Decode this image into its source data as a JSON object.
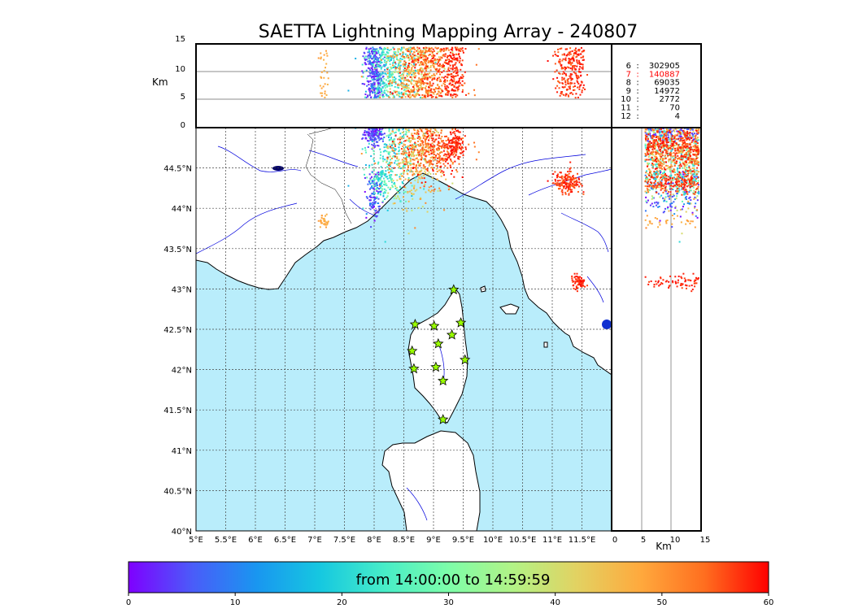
{
  "title": "SAETTA Lightning Mapping Array - 240807",
  "altitude_panel": {
    "ylabel": "Km",
    "yticks": [
      "15",
      "10",
      "5",
      "0"
    ]
  },
  "side_panel": {
    "xlabel": "Km",
    "xticks": [
      "0",
      "5",
      "10",
      "15"
    ]
  },
  "map": {
    "lon_ticks": [
      "5°E",
      "5.5°E",
      "6°E",
      "6.5°E",
      "7°E",
      "7.5°E",
      "8°E",
      "8.5°E",
      "9°E",
      "9.5°E",
      "10°E",
      "10.5°E",
      "11°E",
      "11.5°E"
    ],
    "lat_ticks": [
      "44.5°N",
      "44°N",
      "43.5°N",
      "43°N",
      "42.5°N",
      "42°N",
      "41.5°N",
      "41°N",
      "40.5°N",
      "40°N"
    ],
    "sea_color": "#b9edfb",
    "land_color": "#ffffff",
    "river_color": "#0000dd"
  },
  "stations_table": [
    {
      "id": "6",
      "count": "302905",
      "highlight": false
    },
    {
      "id": "7",
      "count": "140887",
      "highlight": true
    },
    {
      "id": "8",
      "count": "69035",
      "highlight": false
    },
    {
      "id": "9",
      "count": "14972",
      "highlight": false
    },
    {
      "id": "10",
      "count": "2772",
      "highlight": false
    },
    {
      "id": "11",
      "count": "70",
      "highlight": false
    },
    {
      "id": "12",
      "count": "4",
      "highlight": false
    }
  ],
  "colorbar": {
    "caption": "from 14:00:00 to 14:59:59",
    "ticks": [
      "0",
      "10",
      "20",
      "30",
      "40",
      "50",
      "60"
    ],
    "colors": [
      "#7f00ff",
      "#4a5cf9",
      "#1996f0",
      "#16c8e0",
      "#47edc8",
      "#7dfda9",
      "#b2f386",
      "#e2d262",
      "#ffa93d",
      "#ff6e1f",
      "#ff0000"
    ]
  },
  "station_markers": [
    {
      "lon": 9.34,
      "lat": 42.99
    },
    {
      "lon": 8.69,
      "lat": 42.56
    },
    {
      "lon": 9.01,
      "lat": 42.54
    },
    {
      "lon": 9.46,
      "lat": 42.58
    },
    {
      "lon": 9.08,
      "lat": 42.32
    },
    {
      "lon": 9.31,
      "lat": 42.43
    },
    {
      "lon": 8.64,
      "lat": 42.23
    },
    {
      "lon": 9.53,
      "lat": 42.12
    },
    {
      "lon": 8.67,
      "lat": 42.01
    },
    {
      "lon": 9.04,
      "lat": 42.03
    },
    {
      "lon": 9.16,
      "lat": 41.86
    },
    {
      "lon": 9.16,
      "lat": 41.38
    }
  ],
  "lightning_clusters": [
    {
      "lon": 7.98,
      "lat": 44.93,
      "spread_lon": 0.09,
      "spread_lat": 0.07,
      "count": 160,
      "c0": 0,
      "c1": 8
    },
    {
      "lon": 8.3,
      "lat": 44.72,
      "spread_lon": 0.22,
      "spread_lat": 0.28,
      "count": 260,
      "c0": 14,
      "c1": 30
    },
    {
      "lon": 8.68,
      "lat": 44.64,
      "spread_lon": 0.24,
      "spread_lat": 0.3,
      "count": 340,
      "c0": 38,
      "c1": 52
    },
    {
      "lon": 8.95,
      "lat": 44.76,
      "spread_lon": 0.28,
      "spread_lat": 0.2,
      "count": 420,
      "c0": 50,
      "c1": 60
    },
    {
      "lon": 9.35,
      "lat": 44.8,
      "spread_lon": 0.08,
      "spread_lat": 0.12,
      "count": 120,
      "c0": 56,
      "c1": 60
    },
    {
      "lon": 7.98,
      "lat": 44.17,
      "spread_lon": 0.06,
      "spread_lat": 0.14,
      "count": 110,
      "c0": 0,
      "c1": 12
    },
    {
      "lon": 8.12,
      "lat": 44.35,
      "spread_lon": 0.1,
      "spread_lat": 0.1,
      "count": 90,
      "c0": 18,
      "c1": 30
    },
    {
      "lon": 11.25,
      "lat": 44.33,
      "spread_lon": 0.11,
      "spread_lat": 0.07,
      "count": 170,
      "c0": 54,
      "c1": 60
    },
    {
      "lon": 7.13,
      "lat": 43.85,
      "spread_lon": 0.04,
      "spread_lat": 0.05,
      "count": 30,
      "c0": 46,
      "c1": 50
    },
    {
      "lon": 11.43,
      "lat": 43.1,
      "spread_lon": 0.06,
      "spread_lat": 0.04,
      "count": 70,
      "c0": 56,
      "c1": 60
    }
  ]
}
